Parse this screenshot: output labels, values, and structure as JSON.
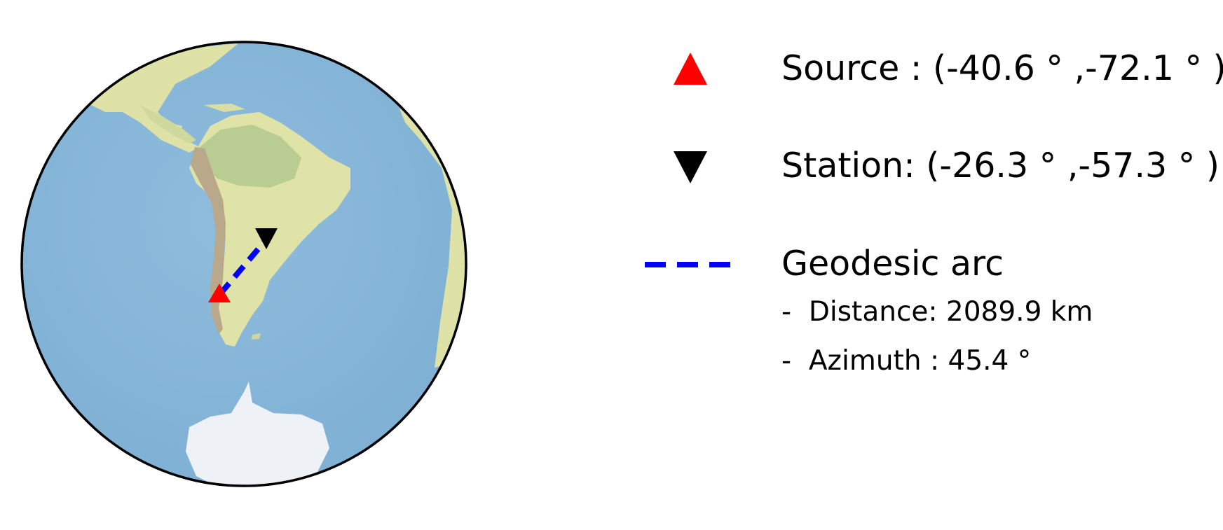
{
  "map": {
    "projection": "orthographic",
    "center": {
      "lat": -33,
      "lon": -65
    },
    "colors": {
      "ocean": "#8ab7d8",
      "land": "#dfe3a8",
      "forest": "#b7cc93",
      "mountains": "#b9a98a",
      "ice": "#eef2f7",
      "outline": "#000000"
    },
    "source": {
      "lat": -40.6,
      "lon": -72.1,
      "color": "#ff0000",
      "icon": "triangle-up-icon"
    },
    "station": {
      "lat": -26.3,
      "lon": -57.3,
      "color": "#000000",
      "icon": "triangle-down-icon"
    },
    "arc": {
      "color": "#0000ff",
      "style": "dashed"
    }
  },
  "legend": {
    "source_label": "Source : (-40.6 ° ,-72.1 ° )",
    "station_label": "Station: (-26.3 ° ,-57.3 ° )",
    "arc_label": "Geodesic arc",
    "distance_label": "-  Distance: 2089.9 km",
    "azimuth_label": "-  Azimuth : 45.4 °"
  }
}
